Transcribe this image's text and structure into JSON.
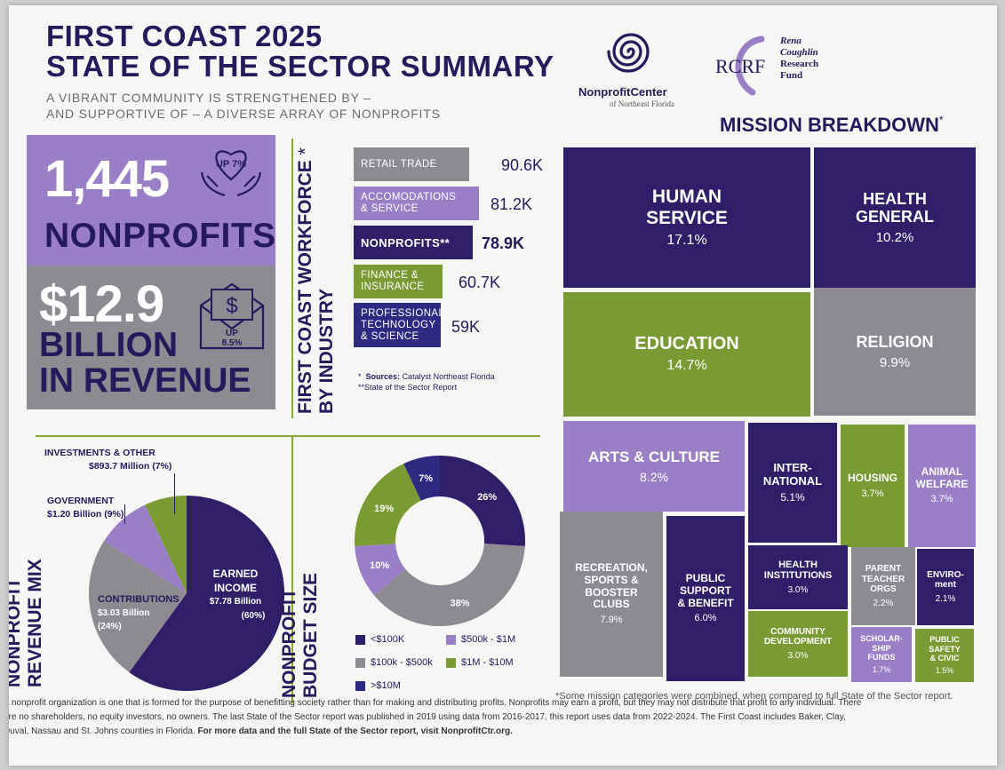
{
  "header": {
    "title_line1": "FIRST COAST 2025",
    "title_line2": "STATE OF THE SECTOR SUMMARY",
    "subtitle_line1": "A VIBRANT COMMUNITY IS STRENGTHENED BY –",
    "subtitle_line2": "AND SUPPORTIVE OF – A DIVERSE ARRAY OF NONPROFITS"
  },
  "logos": {
    "npc_name": "NonprofitCenter",
    "npc_tagline": "of Northeast Florida",
    "rcrf_abbr": "RCRF",
    "rcrf_line1": "Rena",
    "rcrf_line2": "Coughlin",
    "rcrf_line3": "Research",
    "rcrf_line4": "Fund"
  },
  "stats": {
    "nonprofits_count": "1,445",
    "nonprofits_growth": "UP 7%",
    "nonprofits_label": "NONPROFITS",
    "revenue_value": "$12.9",
    "revenue_growth_line1": "UP",
    "revenue_growth_line2": "8.5%",
    "revenue_line1": "BILLION",
    "revenue_line2": "IN REVENUE"
  },
  "workforce": {
    "heading_line1": "FIRST COAST WORKFORCE",
    "heading_line2": "BY INDUSTRY",
    "heading_star": "*",
    "bars": [
      {
        "label": "RETAIL TRADE",
        "value": "90.6K"
      },
      {
        "label_line1": "ACCOMODATIONS",
        "label_line2": "& SERVICE",
        "value": "81.2K"
      },
      {
        "label": "NONPROFITS**",
        "value": "78.9K"
      },
      {
        "label_line1": "FINANCE &",
        "label_line2": "INSURANCE",
        "value": "60.7K"
      },
      {
        "label_line1": "PROFESSIONAL",
        "label_line2": "TECHNOLOGY",
        "label_line3": "& SCIENCE",
        "value": "59K"
      }
    ],
    "source_star": "*",
    "source_label": "Sources:",
    "source1": "Catalyst Northeast Florida",
    "source2": "**State of the Sector Report"
  },
  "mission": {
    "heading": "MISSION BREAKDOWN",
    "heading_star": "*",
    "tiles": [
      {
        "label": "HUMAN\nSERVICE",
        "pct": "17.1%"
      },
      {
        "label": "HEALTH\nGENERAL",
        "pct": "10.2%"
      },
      {
        "label": "EDUCATION",
        "pct": "14.7%"
      },
      {
        "label": "RELIGION",
        "pct": "9.9%"
      },
      {
        "label": "ARTS & CULTURE",
        "pct": "8.2%"
      },
      {
        "label": "INTER-\nNATIONAL",
        "pct": "5.1%"
      },
      {
        "label": "HOUSING",
        "pct": "3.7%"
      },
      {
        "label": "ANIMAL\nWELFARE",
        "pct": "3.7%"
      },
      {
        "label": "RECREATION,\nSPORTS &\nBOOSTER\nCLUBS",
        "pct": "7.9%"
      },
      {
        "label": "PUBLIC\nSUPPORT\n& BENEFIT",
        "pct": "6.0%"
      },
      {
        "label": "HEALTH\nINSTITUTIONS",
        "pct": "3.0%"
      },
      {
        "label": "PARENT\nTEACHER\nORGS",
        "pct": "2.2%"
      },
      {
        "label": "ENVIRO-\nment",
        "pct": "2.1%"
      },
      {
        "label": "COMMUNITY\nDEVELOPMENT",
        "pct": "3.0%"
      },
      {
        "label": "SCHOLAR-\nSHIP\nFUNDS",
        "pct": "1.7%"
      },
      {
        "label": "PUBLIC\nSAFETY\n& CIVIC",
        "pct": "1.5%"
      }
    ],
    "footnote": "*Some mission categories were combined, when compared to full State of the Sector report."
  },
  "revenue_mix": {
    "heading_line1": "NONPROFIT",
    "heading_line2": "REVENUE MIX",
    "investments_label": "INVESTMENTS & OTHER",
    "investments_value": "$893.7 Million (7%)",
    "government_label": "GOVERNMENT",
    "government_value": "$1.20 Billion (9%)",
    "contributions_label": "CONTRIBUTIONS",
    "contributions_value": "$3.03 Billion",
    "contributions_pct": "(24%)",
    "earned_label_line1": "EARNED",
    "earned_label_line2": "INCOME",
    "earned_value": "$7.78 Billion",
    "earned_pct": "(60%)"
  },
  "budget_size": {
    "heading_line1": "NONPROFIT",
    "heading_line2": "BUDGET SIZE",
    "legend": [
      {
        "label": "<$100K"
      },
      {
        "label": "$500k - $1M"
      },
      {
        "label": "$100k - $500k"
      },
      {
        "label": "$1M - $10M"
      },
      {
        "label": ">$10M"
      }
    ]
  },
  "footer": {
    "line1": "A nonprofit organization is one that is formed for the purpose of benefitting society rather than for making and distributing profits. Nonprofits may earn a profit, but they may not distribute that profit to any individual. There",
    "line2": "are no shareholders, no equity investors, no owners. The last State of the Sector report was published in 2019 using data from 2016-2017, this report uses data from 2022-2024. The First Coast includes Baker, Clay,",
    "line3_plain": "Duval, Nassau and St. Johns counties in Florida.",
    "line3_bold": "For more data and the full State of the Sector report, visit NonprofitCtr.org."
  },
  "chart_data": [
    {
      "type": "pie",
      "title": "NONPROFIT REVENUE MIX",
      "categories": [
        "Earned Income",
        "Contributions",
        "Government",
        "Investments & Other"
      ],
      "values": [
        60,
        24,
        9,
        7
      ],
      "amounts": [
        "$7.78 Billion",
        "$3.03 Billion",
        "$1.20 Billion",
        "$893.7 Million"
      ],
      "colors": [
        "#2e1f68",
        "#8d8a92",
        "#9a7fc7",
        "#7a9a34"
      ]
    },
    {
      "type": "pie",
      "title": "NONPROFIT BUDGET SIZE",
      "categories": [
        "<$100K",
        "$100k - $500k",
        "$500k - $1M",
        "$1M - $10M",
        ">$10M"
      ],
      "values": [
        26,
        38,
        10,
        19,
        7
      ],
      "labels": [
        "26%",
        "38%",
        "10%",
        "19%",
        "7%"
      ],
      "colors": [
        "#2e1f68",
        "#8d8a92",
        "#9a7fc7",
        "#7a9a34",
        "#2e2a82"
      ],
      "donut": true
    },
    {
      "type": "bar",
      "title": "FIRST COAST WORKFORCE BY INDUSTRY",
      "categories": [
        "RETAIL TRADE",
        "ACCOMODATIONS & SERVICE",
        "NONPROFITS**",
        "FINANCE & INSURANCE",
        "PROFESSIONAL TECHNOLOGY & SCIENCE"
      ],
      "values": [
        90.6,
        81.2,
        78.9,
        60.7,
        59
      ],
      "unit": "K"
    }
  ],
  "colors": {
    "navy": "#261a5c",
    "dark_purple": "#2e1f68",
    "lavender": "#9a7fc7",
    "gray": "#8d8a92",
    "green": "#7a9a34",
    "blue_navy": "#2e2a82"
  }
}
